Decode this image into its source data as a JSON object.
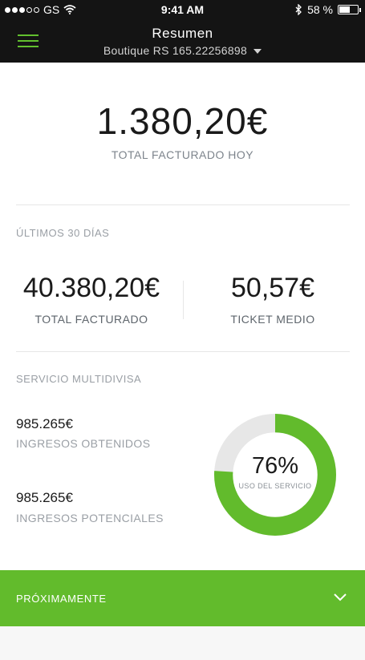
{
  "status_bar": {
    "carrier": "GS",
    "time": "9:41 AM",
    "battery": "58 %",
    "battery_level": 0.58
  },
  "nav": {
    "title": "Resumen",
    "store": "Boutique RS 165.22256898"
  },
  "today": {
    "value": "1.380,20€",
    "label": "TOTAL FACTURADO HOY"
  },
  "last_30_days": {
    "section_label": "ÚLTIMOS 30 DÍAS",
    "total": {
      "value": "40.380,20€",
      "label": "TOTAL FACTURADO"
    },
    "ticket": {
      "value": "50,57€",
      "label": "TICKET MEDIO"
    }
  },
  "multicurrency": {
    "section_label": "SERVICIO MULTIDIVISA",
    "obtained": {
      "value": "985.265€",
      "label": "INGRESOS OBTENIDOS"
    },
    "potential": {
      "value": "985.265€",
      "label": "INGRESOS POTENCIALES"
    },
    "usage": {
      "value": "76%",
      "label": "USO DEL SERVICIO",
      "fraction": 0.76
    }
  },
  "coming_soon": {
    "label": "PRÓXIMAMENTE"
  },
  "colors": {
    "accent": "#62bb2c",
    "dark": "#141414",
    "track": "#e7e7e7"
  }
}
